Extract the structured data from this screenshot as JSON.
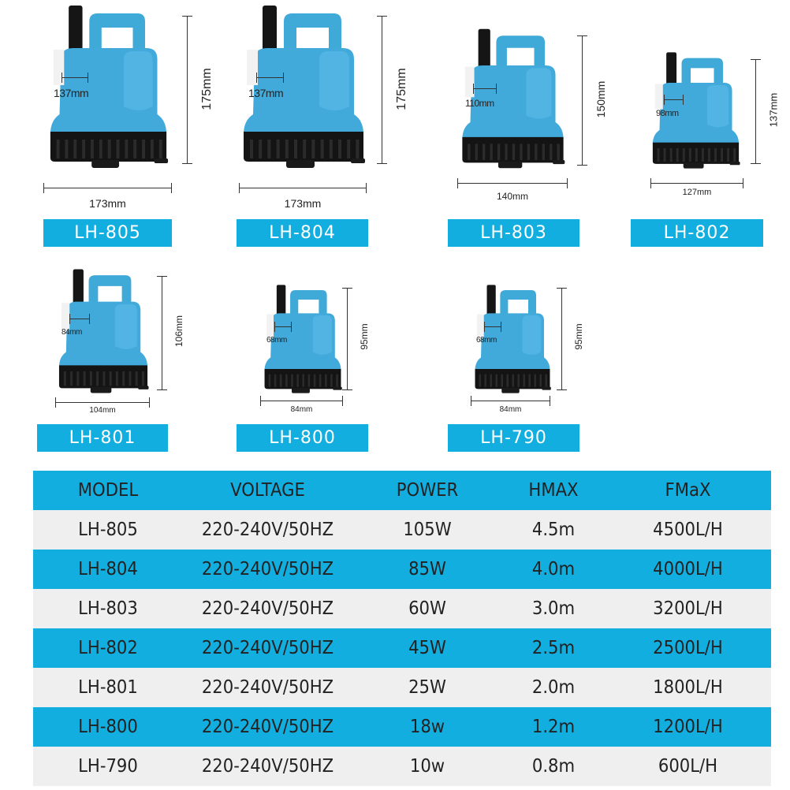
{
  "colors": {
    "accent": "#12aee0",
    "pump_body": "#3fa9d8",
    "pump_base": "#111111",
    "row_light": "#efefef"
  },
  "products": [
    {
      "model": "LH-805",
      "height": "175mm",
      "width": "173mm",
      "inner": "137mm"
    },
    {
      "model": "LH-804",
      "height": "175mm",
      "width": "173mm",
      "inner": "137mm"
    },
    {
      "model": "LH-803",
      "height": "150mm",
      "width": "140mm",
      "inner": "110mm"
    },
    {
      "model": "LH-802",
      "height": "137mm",
      "width": "127mm",
      "inner": "98mm"
    },
    {
      "model": "LH-801",
      "height": "106mm",
      "width": "104mm",
      "inner": "84mm"
    },
    {
      "model": "LH-800",
      "height": "95mm",
      "width": "84mm",
      "inner": "68mm"
    },
    {
      "model": "LH-790",
      "height": "95mm",
      "width": "84mm",
      "inner": "68mm"
    }
  ],
  "table": {
    "headers": [
      "MODEL",
      "VOLTAGE",
      "POWER",
      "HMAX",
      "FMaX"
    ],
    "rows": [
      [
        "LH-805",
        "220-240V/50HZ",
        "105W",
        "4.5m",
        "4500L/H"
      ],
      [
        "LH-804",
        "220-240V/50HZ",
        "85W",
        "4.0m",
        "4000L/H"
      ],
      [
        "LH-803",
        "220-240V/50HZ",
        "60W",
        "3.0m",
        "3200L/H"
      ],
      [
        "LH-802",
        "220-240V/50HZ",
        "45W",
        "2.5m",
        "2500L/H"
      ],
      [
        "LH-801",
        "220-240V/50HZ",
        "25W",
        "2.0m",
        "1800L/H"
      ],
      [
        "LH-800",
        "220-240V/50HZ",
        "18w",
        "1.2m",
        "1200L/H"
      ],
      [
        "LH-790",
        "220-240V/50HZ",
        "10w",
        "0.8m",
        "600L/H"
      ]
    ]
  }
}
